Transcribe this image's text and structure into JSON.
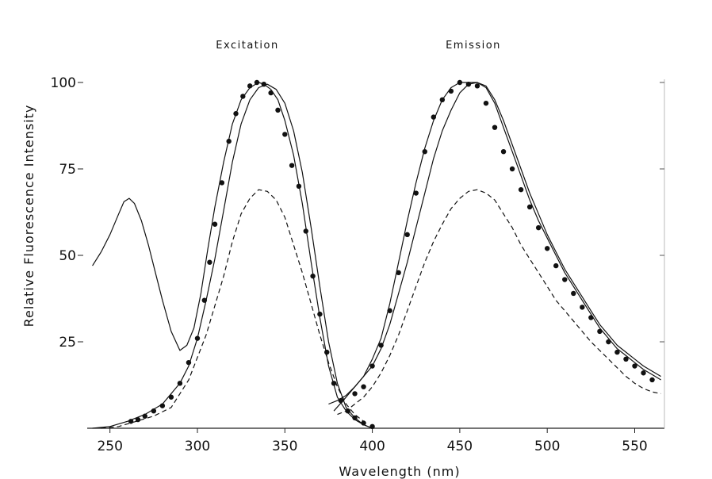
{
  "chart_data": {
    "type": "line",
    "title": "",
    "annotations": [
      "Excitation",
      "Emission"
    ],
    "xlabel": "Wavelength (nm)",
    "ylabel": "Relative Fluorescence Intensity",
    "xlim": [
      237,
      567
    ],
    "ylim": [
      0,
      100
    ],
    "x_ticks": [
      250,
      300,
      350,
      400,
      450,
      500,
      550
    ],
    "y_ticks": [
      25,
      50,
      75,
      100
    ],
    "y_tick_labels": [
      "25",
      "50",
      "75",
      "100"
    ],
    "grid": false,
    "legend": "none",
    "series": [
      {
        "style": "solid",
        "x": [
          240,
          245,
          250,
          255,
          258,
          261,
          264,
          268,
          272,
          276,
          280,
          285,
          290,
          294,
          298,
          302,
          306,
          310,
          315,
          320,
          325,
          330,
          335,
          338,
          342,
          346,
          350,
          355,
          360,
          365,
          370,
          375,
          380,
          385,
          390,
          395,
          400
        ],
        "y": [
          47,
          51,
          56,
          62,
          65.5,
          66.5,
          65,
          60,
          53,
          45,
          37,
          28,
          22.5,
          24,
          29,
          39,
          52,
          64,
          77,
          88,
          95,
          98.5,
          100,
          99.5,
          98,
          95,
          89,
          79,
          65,
          48,
          32,
          18,
          9,
          5,
          2.5,
          1,
          0
        ]
      },
      {
        "style": "solid",
        "x": [
          240,
          250,
          260,
          270,
          280,
          290,
          295,
          300,
          305,
          310,
          315,
          320,
          325,
          330,
          335,
          340,
          345,
          350,
          355,
          360,
          365,
          370,
          375,
          380,
          385,
          390,
          395,
          400
        ],
        "y": [
          0,
          0.5,
          2,
          4,
          7,
          13,
          18,
          26,
          37,
          49,
          63,
          77,
          88,
          95,
          98.5,
          99.5,
          98,
          94,
          86,
          74,
          58,
          41,
          25,
          13,
          6,
          3,
          1,
          0
        ]
      },
      {
        "style": "dots",
        "x": [
          262,
          266,
          270,
          275,
          280,
          285,
          290,
          295,
          300,
          304,
          307,
          310,
          314,
          318,
          322,
          326,
          330,
          334,
          338,
          342,
          346,
          350,
          354,
          358,
          362,
          366,
          370,
          374,
          378,
          382,
          386,
          390,
          395,
          400
        ],
        "y": [
          2,
          2.5,
          3.5,
          5,
          6.5,
          9,
          13,
          19,
          26,
          37,
          48,
          59,
          71,
          83,
          91,
          96,
          99,
          100,
          99.5,
          97,
          92,
          85,
          76,
          70,
          57,
          44,
          33,
          22,
          13,
          8,
          5,
          3,
          1.5,
          0.5
        ]
      },
      {
        "style": "dashed",
        "x": [
          245,
          255,
          265,
          275,
          285,
          295,
          305,
          315,
          320,
          325,
          330,
          335,
          340,
          345,
          350,
          355,
          360,
          365,
          370,
          375,
          380,
          385,
          390,
          395
        ],
        "y": [
          0,
          0.5,
          2,
          3.5,
          6,
          14,
          27,
          44,
          54,
          62,
          66.5,
          69,
          68.5,
          66,
          61,
          53,
          45,
          36,
          27,
          19,
          12,
          7,
          4,
          2
        ]
      },
      {
        "style": "solid",
        "x": [
          378,
          385,
          390,
          395,
          400,
          405,
          410,
          415,
          420,
          425,
          430,
          435,
          440,
          445,
          450,
          455,
          460,
          465,
          470,
          475,
          480,
          485,
          490,
          495,
          500,
          505,
          510,
          515,
          520,
          525,
          530,
          535,
          540,
          545,
          550,
          555,
          560,
          565
        ],
        "y": [
          5,
          9,
          12,
          15,
          20,
          26,
          36,
          48,
          60,
          71,
          81,
          89,
          95,
          98.5,
          100,
          100,
          100,
          98.5,
          94,
          87,
          80,
          73,
          66,
          60,
          55,
          50,
          45,
          41,
          37,
          33,
          29,
          26,
          23,
          21,
          19,
          17,
          15.5,
          14
        ]
      },
      {
        "style": "dots",
        "x": [
          390,
          395,
          400,
          405,
          410,
          415,
          420,
          425,
          430,
          435,
          440,
          445,
          450,
          455,
          460,
          465,
          470,
          475,
          480,
          485,
          490,
          495,
          500,
          505,
          510,
          515,
          520,
          525,
          530,
          535,
          540,
          545,
          550,
          555,
          560
        ],
        "y": [
          10,
          12,
          18,
          24,
          34,
          45,
          56,
          68,
          80,
          90,
          95,
          97.5,
          100,
          99.5,
          99,
          94,
          87,
          80,
          75,
          69,
          64,
          58,
          52,
          47,
          43,
          39,
          35,
          32,
          28,
          25,
          22,
          20,
          18,
          16,
          14
        ]
      },
      {
        "style": "solid",
        "x": [
          375,
          380,
          385,
          390,
          395,
          400,
          405,
          410,
          415,
          420,
          425,
          430,
          435,
          440,
          445,
          450,
          455,
          460,
          465,
          470,
          475,
          480,
          485,
          490,
          495,
          500,
          505,
          510,
          515,
          520,
          525,
          530,
          535,
          540,
          545,
          550,
          555,
          560,
          565
        ],
        "y": [
          7,
          8,
          9.5,
          12,
          15,
          18,
          23,
          30,
          39,
          48,
          58,
          68,
          78,
          86,
          92,
          97,
          99.5,
          100,
          99,
          95,
          89,
          82,
          75,
          68,
          62,
          56,
          51,
          46,
          42,
          38,
          34,
          30,
          27,
          24,
          22,
          20,
          18,
          16.5,
          15
        ]
      },
      {
        "style": "dashed",
        "x": [
          380,
          385,
          390,
          395,
          400,
          405,
          410,
          415,
          420,
          425,
          430,
          435,
          440,
          445,
          450,
          455,
          460,
          465,
          470,
          475,
          480,
          485,
          490,
          495,
          500,
          505,
          510,
          515,
          520,
          525,
          530,
          535,
          540,
          545,
          550,
          555,
          560,
          565
        ],
        "y": [
          4,
          5,
          7,
          9,
          12,
          16,
          21,
          27,
          34,
          41,
          48,
          54,
          59,
          63.5,
          66.5,
          68.5,
          69,
          68,
          66,
          62,
          58,
          53,
          49,
          45,
          41,
          37,
          34,
          31,
          28,
          25,
          22.5,
          20,
          17.5,
          15,
          13,
          11.5,
          10.5,
          10
        ]
      }
    ]
  }
}
